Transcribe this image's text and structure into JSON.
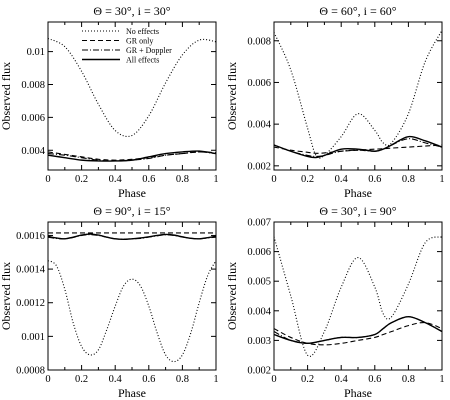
{
  "chart_data": [
    {
      "type": "line",
      "title": "Θ = 30°, i = 30°",
      "xlabel": "Phase",
      "ylabel": "Observed flux",
      "xlim": [
        0,
        1
      ],
      "ylim": [
        0.0028,
        0.0118
      ],
      "xticks": [
        "0",
        "0.2",
        "0.4",
        "0.6",
        "0.8",
        "1"
      ],
      "yticks": [
        {
          "v": 0.004,
          "label": "0.004"
        },
        {
          "v": 0.006,
          "label": "0.006"
        },
        {
          "v": 0.008,
          "label": "0.008"
        },
        {
          "v": 0.01,
          "label": "0.01"
        }
      ],
      "legend": {
        "placement": "top-right",
        "entries": [
          "No effects",
          "GR only",
          "GR + Doppler",
          "All effects"
        ]
      },
      "x": [
        0,
        0.1,
        0.2,
        0.3,
        0.4,
        0.5,
        0.6,
        0.7,
        0.8,
        0.9,
        1
      ],
      "series": [
        {
          "name": "No effects",
          "style": "dotted",
          "values": [
            0.0108,
            0.0103,
            0.0088,
            0.0068,
            0.0052,
            0.0049,
            0.0061,
            0.0081,
            0.0098,
            0.0107,
            0.0106
          ]
        },
        {
          "name": "GR only",
          "style": "dashed",
          "values": [
            0.0039,
            0.00375,
            0.0036,
            0.00345,
            0.0034,
            0.00345,
            0.00355,
            0.0037,
            0.0038,
            0.0039,
            0.00385
          ]
        },
        {
          "name": "GR + Doppler",
          "style": "dashdot",
          "values": [
            0.0038,
            0.0037,
            0.00355,
            0.0034,
            0.00335,
            0.0034,
            0.0035,
            0.0037,
            0.0038,
            0.0039,
            0.0038
          ]
        },
        {
          "name": "All effects",
          "style": "solid",
          "values": [
            0.0037,
            0.00355,
            0.0034,
            0.00335,
            0.00335,
            0.0034,
            0.0036,
            0.0038,
            0.0039,
            0.00395,
            0.0038
          ]
        }
      ]
    },
    {
      "type": "line",
      "title": "Θ = 60°, i = 60°",
      "xlabel": "Phase",
      "ylabel": "Observed flux",
      "xlim": [
        0,
        1
      ],
      "ylim": [
        0.0018,
        0.0089
      ],
      "xticks": [
        "0",
        "0.2",
        "0.4",
        "0.6",
        "0.8",
        "1"
      ],
      "yticks": [
        {
          "v": 0.002,
          "label": "0.002"
        },
        {
          "v": 0.004,
          "label": "0.004"
        },
        {
          "v": 0.006,
          "label": "0.006"
        },
        {
          "v": 0.008,
          "label": "0.008"
        }
      ],
      "x": [
        0,
        0.1,
        0.2,
        0.25,
        0.3,
        0.4,
        0.5,
        0.6,
        0.65,
        0.7,
        0.8,
        0.9,
        1
      ],
      "series": [
        {
          "name": "No effects",
          "style": "dotted",
          "values": [
            0.0084,
            0.0066,
            0.0038,
            0.0025,
            0.0025,
            0.0034,
            0.0045,
            0.0037,
            0.0031,
            0.0031,
            0.0045,
            0.007,
            0.0085
          ]
        },
        {
          "name": "GR only",
          "style": "dashed",
          "values": [
            0.0029,
            0.00275,
            0.00265,
            0.0026,
            0.00262,
            0.0027,
            0.00275,
            0.0028,
            0.00282,
            0.00285,
            0.0029,
            0.00295,
            0.003
          ]
        },
        {
          "name": "GR + Doppler",
          "style": "dashdot",
          "values": [
            0.003,
            0.0027,
            0.0025,
            0.00245,
            0.0025,
            0.0027,
            0.00275,
            0.0027,
            0.0028,
            0.003,
            0.0033,
            0.0031,
            0.0029
          ]
        },
        {
          "name": "All effects",
          "style": "solid",
          "values": [
            0.003,
            0.0027,
            0.00245,
            0.0024,
            0.0025,
            0.0028,
            0.0028,
            0.0027,
            0.0028,
            0.003,
            0.0034,
            0.0032,
            0.0029
          ]
        }
      ]
    },
    {
      "type": "line",
      "title": "Θ = 90°, i = 15°",
      "xlabel": "Phase",
      "ylabel": "Observed flux",
      "xlim": [
        0,
        1
      ],
      "ylim": [
        0.0008,
        0.00168
      ],
      "xticks": [
        "0",
        "0.2",
        "0.4",
        "0.6",
        "0.8",
        "1"
      ],
      "yticks": [
        {
          "v": 0.0008,
          "label": "0.0008"
        },
        {
          "v": 0.001,
          "label": "0.001"
        },
        {
          "v": 0.0012,
          "label": "0.0012"
        },
        {
          "v": 0.0014,
          "label": "0.0014"
        },
        {
          "v": 0.0016,
          "label": "0.0016"
        }
      ],
      "x": [
        0,
        0.05,
        0.1,
        0.15,
        0.2,
        0.25,
        0.3,
        0.35,
        0.4,
        0.45,
        0.5,
        0.55,
        0.6,
        0.65,
        0.7,
        0.75,
        0.8,
        0.85,
        0.9,
        0.95,
        1
      ],
      "series": [
        {
          "name": "No effects",
          "style": "dotted",
          "values": [
            0.00145,
            0.00142,
            0.00128,
            0.00108,
            0.00094,
            0.00089,
            0.00092,
            0.00104,
            0.00118,
            0.0013,
            0.00134,
            0.0013,
            0.00118,
            0.00102,
            0.00089,
            0.00085,
            0.00089,
            0.00102,
            0.0012,
            0.00136,
            0.00145
          ]
        },
        {
          "name": "GR only",
          "style": "dashed",
          "values": [
            0.001615,
            0.001615,
            0.001615,
            0.001615,
            0.001615,
            0.001615,
            0.001615,
            0.001615,
            0.001615,
            0.001615,
            0.001615,
            0.001615,
            0.001615,
            0.001615,
            0.001615,
            0.001615,
            0.001615,
            0.001615,
            0.001615,
            0.001615,
            0.001615
          ]
        },
        {
          "name": "GR + Doppler",
          "style": "dashdot",
          "values": [
            0.00159,
            0.001582,
            0.00158,
            0.001588,
            0.0016,
            0.001605,
            0.0016,
            0.00159,
            0.00158,
            0.001578,
            0.00158,
            0.001582,
            0.00159,
            0.001598,
            0.001604,
            0.0016,
            0.00159,
            0.001583,
            0.00158,
            0.001585,
            0.00159
          ]
        },
        {
          "name": "All effects",
          "style": "solid",
          "values": [
            0.001595,
            0.001585,
            0.00158,
            0.00159,
            0.001602,
            0.001608,
            0.001602,
            0.00159,
            0.00158,
            0.001577,
            0.00158,
            0.001585,
            0.001592,
            0.0016,
            0.001606,
            0.001602,
            0.001592,
            0.001583,
            0.00158,
            0.001587,
            0.001595
          ]
        }
      ]
    },
    {
      "type": "line",
      "title": "Θ = 30°, i = 90°",
      "xlabel": "Phase",
      "ylabel": "Observed flux",
      "xlim": [
        0,
        1
      ],
      "ylim": [
        0.002,
        0.007
      ],
      "xticks": [
        "0",
        "0.2",
        "0.4",
        "0.6",
        "0.8",
        "1"
      ],
      "yticks": [
        {
          "v": 0.002,
          "label": "0.002"
        },
        {
          "v": 0.003,
          "label": "0.003"
        },
        {
          "v": 0.004,
          "label": "0.004"
        },
        {
          "v": 0.005,
          "label": "0.005"
        },
        {
          "v": 0.006,
          "label": "0.006"
        },
        {
          "v": 0.007,
          "label": "0.007"
        }
      ],
      "x": [
        0,
        0.1,
        0.2,
        0.3,
        0.4,
        0.5,
        0.6,
        0.65,
        0.7,
        0.8,
        0.9,
        1
      ],
      "series": [
        {
          "name": "No effects",
          "style": "dotted",
          "values": [
            0.0065,
            0.0045,
            0.0025,
            0.0033,
            0.0048,
            0.0058,
            0.0048,
            0.0039,
            0.0038,
            0.0049,
            0.0063,
            0.0065
          ]
        },
        {
          "name": "GR only",
          "style": "dashed",
          "values": [
            0.0034,
            0.0031,
            0.0029,
            0.00285,
            0.0029,
            0.003,
            0.0031,
            0.0032,
            0.0033,
            0.0035,
            0.0036,
            0.0034
          ]
        },
        {
          "name": "GR + Doppler",
          "style": "dashdot",
          "values": [
            0.0033,
            0.003,
            0.0029,
            0.003,
            0.0031,
            0.0031,
            0.0032,
            0.0034,
            0.0036,
            0.0038,
            0.0036,
            0.0033
          ]
        },
        {
          "name": "All effects",
          "style": "solid",
          "values": [
            0.0032,
            0.003,
            0.0029,
            0.003,
            0.0031,
            0.0031,
            0.0032,
            0.0034,
            0.0036,
            0.0038,
            0.0036,
            0.0033
          ]
        }
      ]
    }
  ]
}
